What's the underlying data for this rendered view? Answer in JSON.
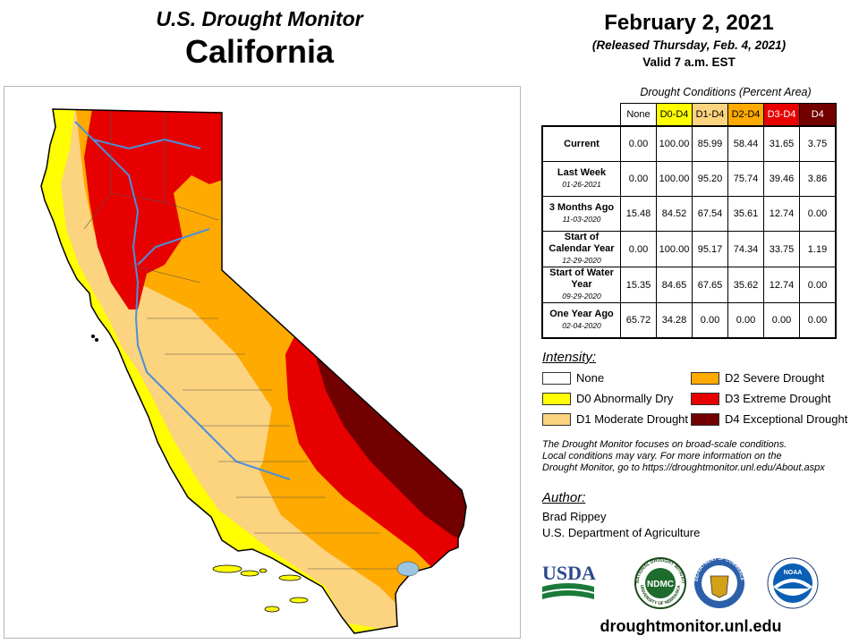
{
  "header": {
    "title_line1": "U.S. Drought Monitor",
    "title_line2": "California",
    "date": "February 2, 2021",
    "released": "(Released Thursday, Feb. 4, 2021)",
    "valid": "Valid 7 a.m. EST"
  },
  "table": {
    "caption": "Drought Conditions (Percent Area)",
    "columns": [
      {
        "label": "None",
        "color": "#ffffff",
        "text_color": "#000000"
      },
      {
        "label": "D0-D4",
        "color": "#ffff00",
        "text_color": "#000000"
      },
      {
        "label": "D1-D4",
        "color": "#fcd37f",
        "text_color": "#000000"
      },
      {
        "label": "D2-D4",
        "color": "#ffaa00",
        "text_color": "#000000"
      },
      {
        "label": "D3-D4",
        "color": "#e60000",
        "text_color": "#ffffff"
      },
      {
        "label": "D4",
        "color": "#730000",
        "text_color": "#ffffff"
      }
    ],
    "rows": [
      {
        "label": "Current",
        "date": "",
        "values": [
          "0.00",
          "100.00",
          "85.99",
          "58.44",
          "31.65",
          "3.75"
        ]
      },
      {
        "label": "Last Week",
        "date": "01-26-2021",
        "values": [
          "0.00",
          "100.00",
          "95.20",
          "75.74",
          "39.46",
          "3.86"
        ]
      },
      {
        "label": "3 Months Ago",
        "date": "11-03-2020",
        "values": [
          "15.48",
          "84.52",
          "67.54",
          "35.61",
          "12.74",
          "0.00"
        ]
      },
      {
        "label": "Start of Calendar Year",
        "date": "12-29-2020",
        "values": [
          "0.00",
          "100.00",
          "95.17",
          "74.34",
          "33.75",
          "1.19"
        ]
      },
      {
        "label": "Start of Water Year",
        "date": "09-29-2020",
        "values": [
          "15.35",
          "84.65",
          "67.65",
          "35.62",
          "12.74",
          "0.00"
        ]
      },
      {
        "label": "One Year Ago",
        "date": "02-04-2020",
        "values": [
          "65.72",
          "34.28",
          "0.00",
          "0.00",
          "0.00",
          "0.00"
        ]
      }
    ]
  },
  "legend": {
    "heading": "Intensity:",
    "items": [
      {
        "label": "None",
        "color": "#ffffff"
      },
      {
        "label": "D0 Abnormally Dry",
        "color": "#ffff00"
      },
      {
        "label": "D1 Moderate Drought",
        "color": "#fcd37f"
      },
      {
        "label": "D2 Severe Drought",
        "color": "#ffaa00"
      },
      {
        "label": "D3 Extreme Drought",
        "color": "#e60000"
      },
      {
        "label": "D4 Exceptional Drought",
        "color": "#730000"
      }
    ]
  },
  "note": {
    "line1": "The Drought Monitor focuses on broad-scale conditions.",
    "line2": "Local conditions may vary. For more information on the",
    "line3": "Drought Monitor, go to https://droughtmonitor.unl.edu/About.aspx"
  },
  "author": {
    "heading": "Author:",
    "name": "Brad Rippey",
    "org": "U.S. Department of Agriculture"
  },
  "logos": {
    "usda": "USDA",
    "ndmc": "NDMC",
    "ndmc_ring_top": "NATIONAL DROUGHT MITIGATION CENTER",
    "ndmc_ring_bottom": "UNIVERSITY OF NEBRASKA",
    "commerce_ring": "DEPARTMENT OF COMMERCE",
    "noaa": "NOAA"
  },
  "site_url": "droughtmonitor.unl.edu"
}
